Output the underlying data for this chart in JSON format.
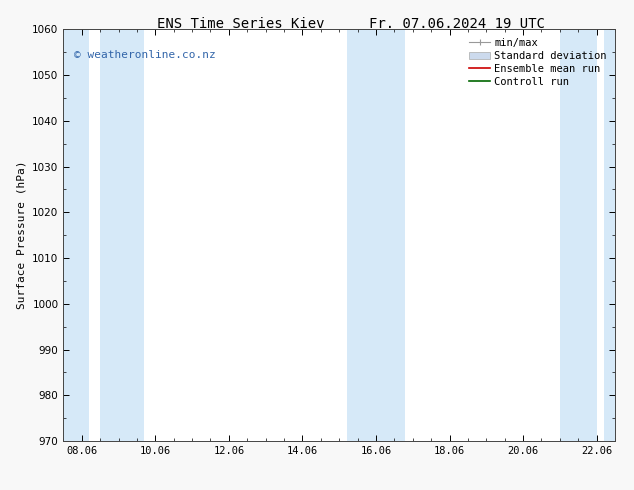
{
  "title_left": "ENS Time Series Kiev",
  "title_right": "Fr. 07.06.2024 19 UTC",
  "ylabel": "Surface Pressure (hPa)",
  "xlim_start": 0,
  "xlim_end": 15,
  "ylim": [
    970,
    1060
  ],
  "yticks": [
    970,
    980,
    990,
    1000,
    1010,
    1020,
    1030,
    1040,
    1050,
    1060
  ],
  "xtick_labels": [
    "08.06",
    "10.06",
    "12.06",
    "14.06",
    "16.06",
    "18.06",
    "20.06",
    "22.06"
  ],
  "xtick_positions": [
    0.5,
    2.5,
    4.5,
    6.5,
    8.5,
    10.5,
    12.5,
    14.5
  ],
  "shaded_bands": [
    {
      "x_start": 0.0,
      "x_end": 0.7
    },
    {
      "x_start": 1.0,
      "x_end": 2.2
    },
    {
      "x_start": 7.7,
      "x_end": 9.3
    },
    {
      "x_start": 13.5,
      "x_end": 14.5
    },
    {
      "x_start": 14.7,
      "x_end": 15.0
    }
  ],
  "band_color": "#d6e9f8",
  "watermark_text": "© weatheronline.co.nz",
  "watermark_color": "#3366aa",
  "legend_items": [
    {
      "label": "min/max",
      "color": "#999999",
      "type": "errorbar"
    },
    {
      "label": "Standard deviation",
      "color": "#ccdaed",
      "type": "box"
    },
    {
      "label": "Ensemble mean run",
      "color": "#cc0000",
      "type": "line"
    },
    {
      "label": "Controll run",
      "color": "#006600",
      "type": "line"
    }
  ],
  "bg_color": "#f8f8f8",
  "plot_bg_color": "#ffffff",
  "title_fontsize": 10,
  "axis_fontsize": 8,
  "tick_fontsize": 7.5,
  "legend_fontsize": 7.5
}
